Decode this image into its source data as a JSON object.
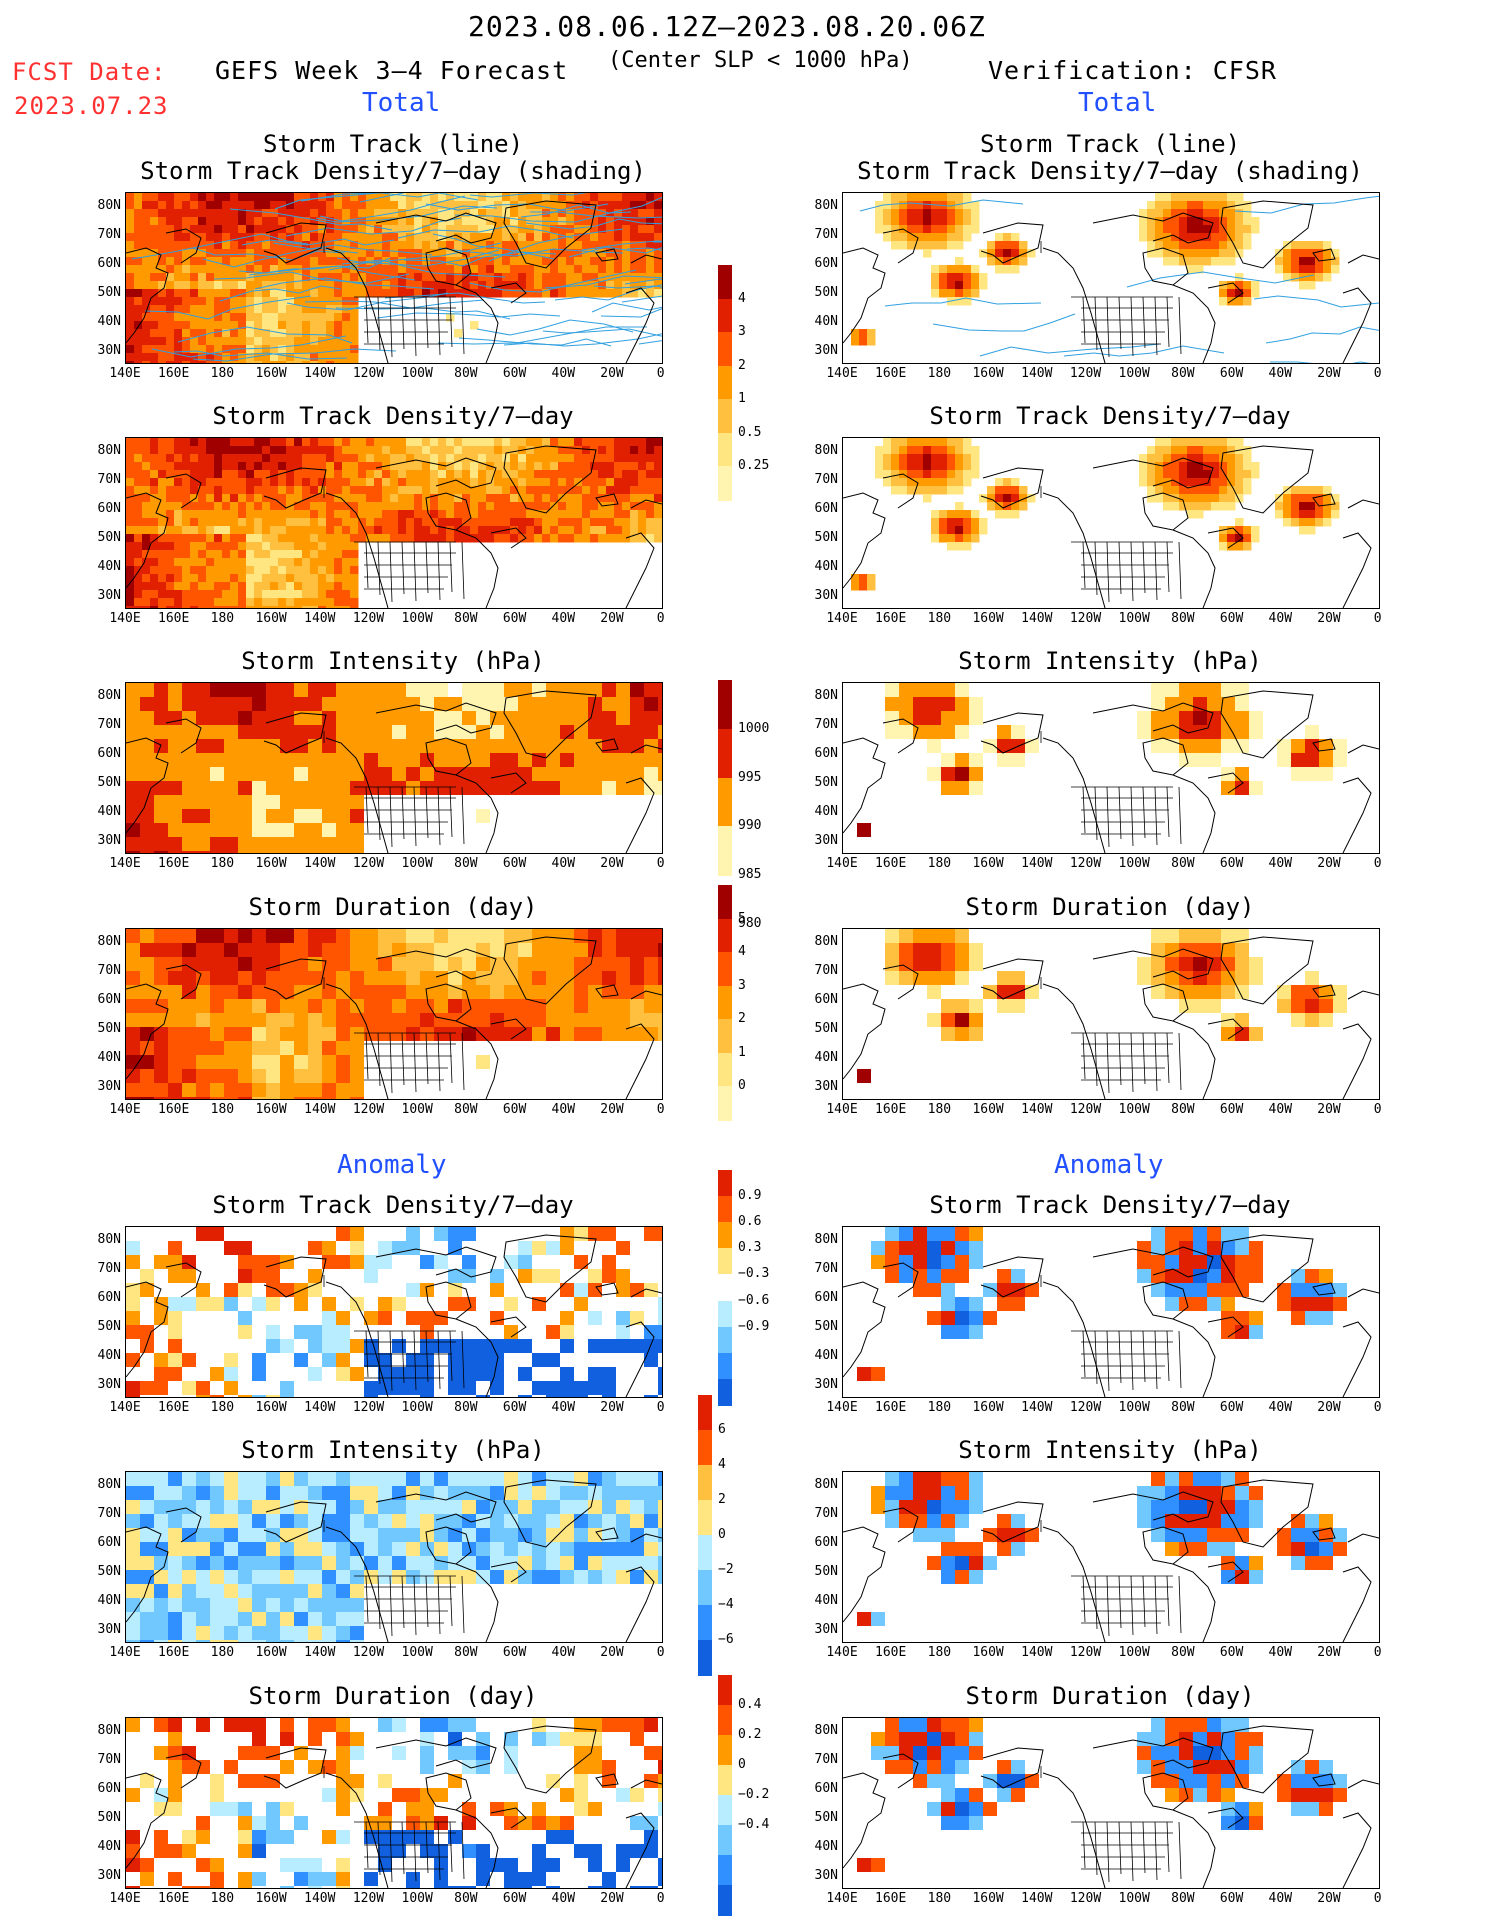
{
  "header": {
    "period": "2023.08.06.12Z–2023.08.20.06Z",
    "fcst_date_label": "FCST Date:",
    "fcst_date": "2023.07.23",
    "forecast_title": "GEFS Week 3–4 Forecast",
    "criterion": "(Center SLP < 1000 hPa)",
    "verification": "Verification: CFSR"
  },
  "sections": {
    "total": "Total",
    "anomaly": "Anomaly"
  },
  "panels": {
    "track_line": "Storm Track (line)",
    "track_shading": "Storm Track Density/7–day (shading)",
    "density": "Storm Track Density/7–day",
    "intensity": "Storm Intensity (hPa)",
    "duration": "Storm Duration (day)"
  },
  "lat_labels": [
    "80N",
    "70N",
    "60N",
    "50N",
    "40N",
    "30N"
  ],
  "lon_labels": [
    "140E",
    "160E",
    "180",
    "160W",
    "140W",
    "120W",
    "100W",
    "80W",
    "60W",
    "40W",
    "20W",
    "0"
  ],
  "colorbars": {
    "density_total": [
      "4",
      "3",
      "2",
      "1",
      "0.5",
      "0.25"
    ],
    "intensity_total": [
      "1000",
      "995",
      "990",
      "985",
      "980"
    ],
    "duration_total": [
      "5",
      "4",
      "3",
      "2",
      "1",
      "0"
    ],
    "density_anom": [
      "0.9",
      "0.6",
      "0.3",
      "−0.3",
      "−0.6",
      "−0.9"
    ],
    "intensity_anom": [
      "6",
      "4",
      "2",
      "0",
      "−2",
      "−4",
      "−6"
    ],
    "duration_anom": [
      "0.4",
      "0.2",
      "0",
      "−0.2",
      "−0.4"
    ]
  },
  "colors": {
    "dark_red": "#a00000",
    "red": "#e02000",
    "orange_red": "#ff5500",
    "orange": "#ff9a00",
    "light_orange": "#ffc040",
    "yellow": "#ffe680",
    "pale_yellow": "#fff5b0",
    "light_blue": "#b8ecff",
    "sky_blue": "#70c8ff",
    "blue": "#3090ff",
    "dark_blue": "#1060e0",
    "track_line": "#30a0e0",
    "title_red": "#ff3030",
    "title_blue": "#2050ff"
  }
}
